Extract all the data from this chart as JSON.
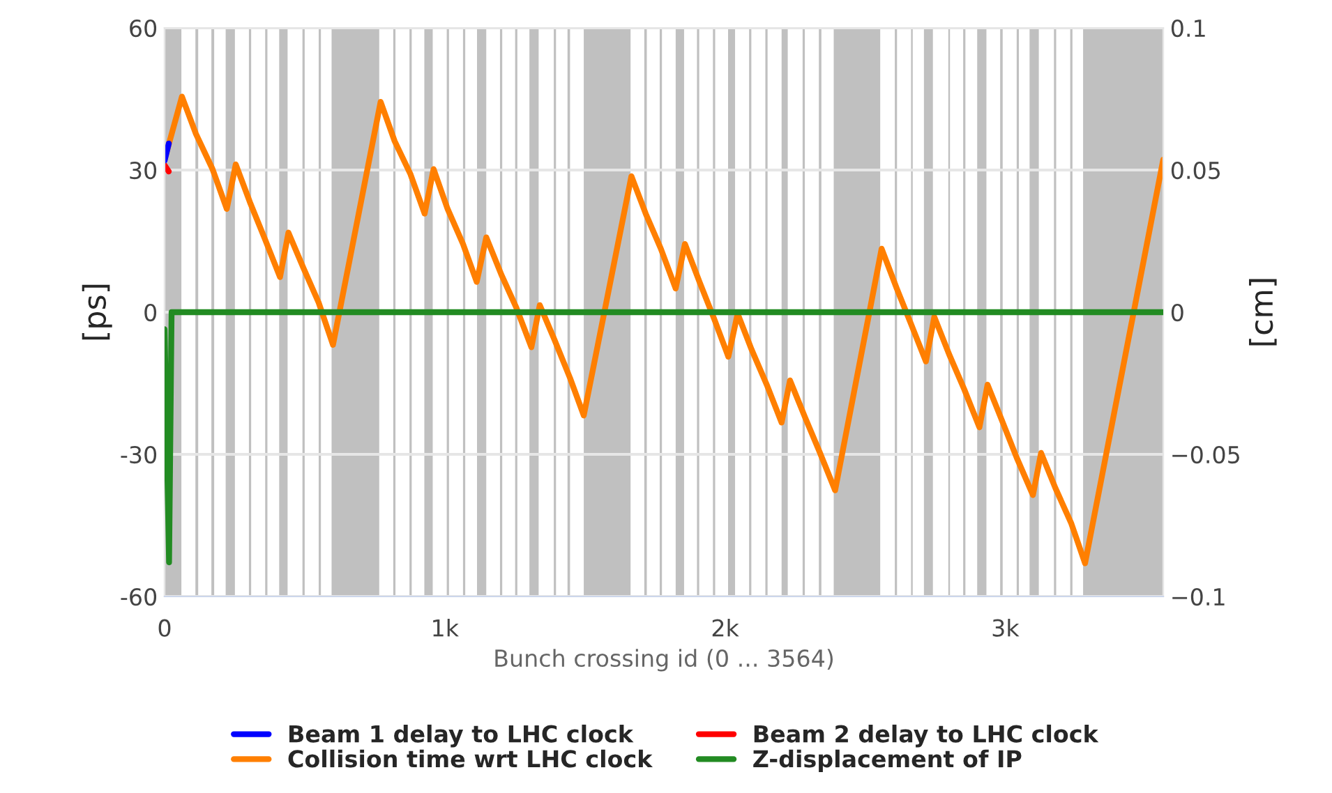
{
  "chart_data": {
    "type": "line",
    "xlabel": "Bunch crossing id (0 ... 3564)",
    "ylabel": "[ps]",
    "y2label": "[cm]",
    "xlim": [
      0,
      3564
    ],
    "xticks": [
      0,
      {
        "value": 1000,
        "label": "1k"
      },
      {
        "value": 2000,
        "label": "2k"
      },
      {
        "value": 3000,
        "label": "3k"
      }
    ],
    "ylim": [
      -60,
      60
    ],
    "yticks": [
      -60,
      -30,
      0,
      30,
      60
    ],
    "y2lim": [
      -0.1,
      0.1
    ],
    "y2ticks": [
      {
        "value": -0.1,
        "label": "−0.1"
      },
      {
        "value": -0.05,
        "label": "−0.05"
      },
      0,
      0.05,
      0.1
    ],
    "grid": "y",
    "legend": "bottom",
    "line_style": "solid",
    "series": [
      {
        "name": "Beam 1 delay to LHC clock",
        "color": "#0000ff",
        "x": [
          0,
          15
        ],
        "values": [
          32,
          35.6
        ]
      },
      {
        "name": "Beam 2 delay to LHC clock",
        "color": "#ff0000",
        "x": [
          0,
          15
        ],
        "values": [
          31,
          29.7
        ]
      },
      {
        "name": "Collision time wrt LHC clock",
        "color": "#ff7f00",
        "x": [
          0,
          62,
          112,
          171,
          222,
          254,
          304,
          359,
          412,
          442,
          495,
          550,
          601,
          771,
          821,
          877,
          928,
          960,
          1010,
          1065,
          1114,
          1148,
          1202,
          1255,
          1309,
          1339,
          1392,
          1447,
          1496,
          1666,
          1717,
          1771,
          1824,
          1857,
          1909,
          1962,
          2012,
          2045,
          2095,
          2149,
          2202,
          2232,
          2285,
          2339,
          2393,
          2559,
          2613,
          2664,
          2717,
          2747,
          2800,
          2854,
          2908,
          2937,
          2988,
          3041,
          3099,
          3128,
          3179,
          3236,
          3285,
          3564
        ],
        "values": [
          32.2,
          45.5,
          37.6,
          30.2,
          21.8,
          31.2,
          23.3,
          15.3,
          7.4,
          16.8,
          9.4,
          2.0,
          -6.9,
          44.4,
          36.1,
          29.2,
          20.8,
          30.2,
          21.8,
          14.4,
          6.4,
          15.8,
          7.9,
          1.0,
          -7.4,
          1.5,
          -5.9,
          -13.9,
          -21.8,
          28.7,
          20.8,
          13.4,
          5.0,
          14.4,
          6.4,
          -1.5,
          -9.4,
          -0.3,
          -7.9,
          -15.3,
          -23.3,
          -14.4,
          -22.1,
          -29.7,
          -37.6,
          13.4,
          5.0,
          -2.5,
          -10.4,
          -1.0,
          -8.9,
          -16.3,
          -24.3,
          -15.3,
          -22.8,
          -30.7,
          -38.6,
          -29.7,
          -37.1,
          -44.6,
          -53.0,
          32.2
        ]
      },
      {
        "name": "Z-displacement of IP",
        "color": "#228b22",
        "axis": "y2",
        "x": [
          0,
          16,
          25,
          3564
        ],
        "values": [
          -0.006,
          -0.088,
          0,
          0
        ]
      }
    ],
    "bands": [
      {
        "axis": "x",
        "from": 0,
        "to": 60,
        "color": "#c0c0c0"
      },
      {
        "axis": "x",
        "from": 110,
        "to": 120,
        "color": "#c0c0c0"
      },
      {
        "axis": "x",
        "from": 167,
        "to": 177,
        "color": "#c0c0c0"
      },
      {
        "axis": "x",
        "from": 218,
        "to": 251,
        "color": "#c0c0c0"
      },
      {
        "axis": "x",
        "from": 301,
        "to": 309,
        "color": "#c0c0c0"
      },
      {
        "axis": "x",
        "from": 359,
        "to": 367,
        "color": "#c0c0c0"
      },
      {
        "axis": "x",
        "from": 409,
        "to": 439,
        "color": "#c0c0c0"
      },
      {
        "axis": "x",
        "from": 492,
        "to": 500,
        "color": "#c0c0c0"
      },
      {
        "axis": "x",
        "from": 550,
        "to": 558,
        "color": "#c0c0c0"
      },
      {
        "axis": "x",
        "from": 596,
        "to": 766,
        "color": "#c0c0c0"
      },
      {
        "axis": "x",
        "from": 816,
        "to": 824,
        "color": "#c0c0c0"
      },
      {
        "axis": "x",
        "from": 874,
        "to": 882,
        "color": "#c0c0c0"
      },
      {
        "axis": "x",
        "from": 927,
        "to": 957,
        "color": "#c0c0c0"
      },
      {
        "axis": "x",
        "from": 1007,
        "to": 1015,
        "color": "#c0c0c0"
      },
      {
        "axis": "x",
        "from": 1065,
        "to": 1073,
        "color": "#c0c0c0"
      },
      {
        "axis": "x",
        "from": 1115,
        "to": 1148,
        "color": "#c0c0c0"
      },
      {
        "axis": "x",
        "from": 1197,
        "to": 1205,
        "color": "#c0c0c0"
      },
      {
        "axis": "x",
        "from": 1251,
        "to": 1259,
        "color": "#c0c0c0"
      },
      {
        "axis": "x",
        "from": 1302,
        "to": 1335,
        "color": "#c0c0c0"
      },
      {
        "axis": "x",
        "from": 1389,
        "to": 1397,
        "color": "#c0c0c0"
      },
      {
        "axis": "x",
        "from": 1438,
        "to": 1447,
        "color": "#c0c0c0"
      },
      {
        "axis": "x",
        "from": 1496,
        "to": 1663,
        "color": "#c0c0c0"
      },
      {
        "axis": "x",
        "from": 1712,
        "to": 1721,
        "color": "#c0c0c0"
      },
      {
        "axis": "x",
        "from": 1767,
        "to": 1775,
        "color": "#c0c0c0"
      },
      {
        "axis": "x",
        "from": 1824,
        "to": 1854,
        "color": "#c0c0c0"
      },
      {
        "axis": "x",
        "from": 1900,
        "to": 1908,
        "color": "#c0c0c0"
      },
      {
        "axis": "x",
        "from": 1957,
        "to": 1965,
        "color": "#c0c0c0"
      },
      {
        "axis": "x",
        "from": 2011,
        "to": 2036,
        "color": "#c0c0c0"
      },
      {
        "axis": "x",
        "from": 2086,
        "to": 2094,
        "color": "#c0c0c0"
      },
      {
        "axis": "x",
        "from": 2144,
        "to": 2152,
        "color": "#c0c0c0"
      },
      {
        "axis": "x",
        "from": 2202,
        "to": 2224,
        "color": "#c0c0c0"
      },
      {
        "axis": "x",
        "from": 2277,
        "to": 2285,
        "color": "#c0c0c0"
      },
      {
        "axis": "x",
        "from": 2335,
        "to": 2344,
        "color": "#c0c0c0"
      },
      {
        "axis": "x",
        "from": 2388,
        "to": 2554,
        "color": "#c0c0c0"
      },
      {
        "axis": "x",
        "from": 2606,
        "to": 2614,
        "color": "#c0c0c0"
      },
      {
        "axis": "x",
        "from": 2664,
        "to": 2670,
        "color": "#c0c0c0"
      },
      {
        "axis": "x",
        "from": 2710,
        "to": 2742,
        "color": "#c0c0c0"
      },
      {
        "axis": "x",
        "from": 2797,
        "to": 2803,
        "color": "#c0c0c0"
      },
      {
        "axis": "x",
        "from": 2850,
        "to": 2858,
        "color": "#c0c0c0"
      },
      {
        "axis": "x",
        "from": 2900,
        "to": 2933,
        "color": "#c0c0c0"
      },
      {
        "axis": "x",
        "from": 2982,
        "to": 2991,
        "color": "#c0c0c0"
      },
      {
        "axis": "x",
        "from": 3041,
        "to": 3049,
        "color": "#c0c0c0"
      },
      {
        "axis": "x",
        "from": 3087,
        "to": 3120,
        "color": "#c0c0c0"
      },
      {
        "axis": "x",
        "from": 3174,
        "to": 3182,
        "color": "#c0c0c0"
      },
      {
        "axis": "x",
        "from": 3232,
        "to": 3240,
        "color": "#c0c0c0"
      },
      {
        "axis": "x",
        "from": 3278,
        "to": 3564,
        "color": "#c0c0c0"
      }
    ]
  }
}
